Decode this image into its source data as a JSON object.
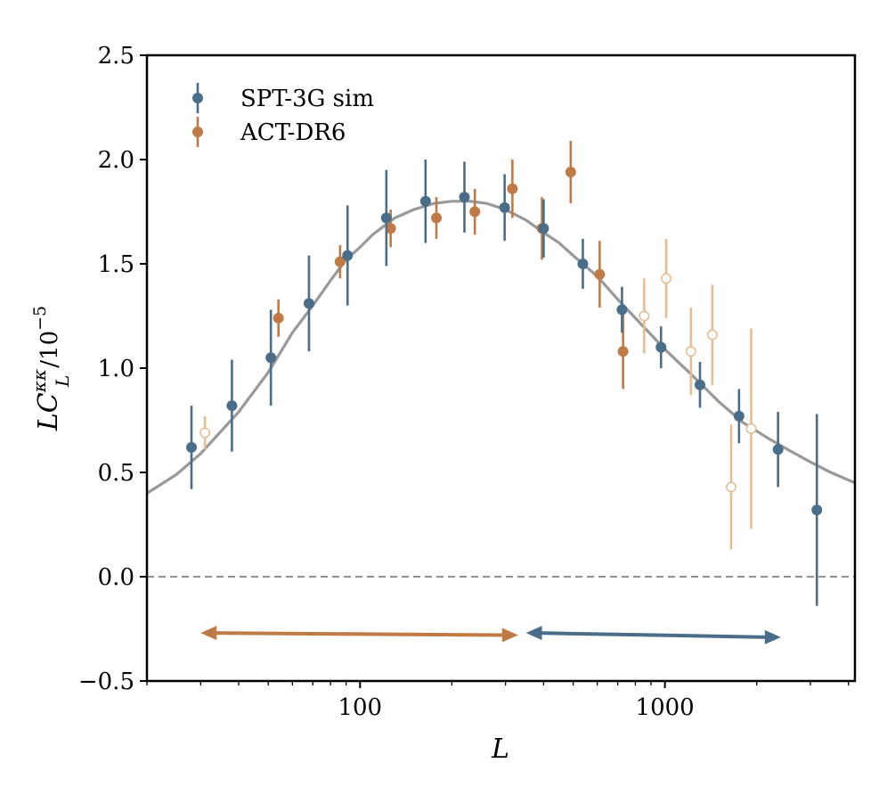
{
  "chart_data": {
    "type": "scatter",
    "xlabel": "L",
    "ylabel": {
      "main": "LC",
      "superscript": "κκ",
      "subscript": "L",
      "suffix": "/10",
      "exponent": "−5"
    },
    "x_scale": "log",
    "xlim": [
      20,
      4200
    ],
    "ylim": [
      -0.5,
      2.5
    ],
    "x_ticks": [
      100,
      1000
    ],
    "x_tick_labels": [
      "100",
      "1000"
    ],
    "y_ticks": [
      -0.5,
      0.0,
      0.5,
      1.0,
      1.5,
      2.0,
      2.5
    ],
    "y_tick_labels": [
      "−0.5",
      "0.0",
      "0.5",
      "1.0",
      "1.5",
      "2.0",
      "2.5"
    ],
    "grid": false,
    "legend_position": "top-left",
    "reference_line": {
      "y": 0,
      "style": "dashed",
      "color": "#808080"
    },
    "series": [
      {
        "name": "SPT-3G sim",
        "kind": "errorbar",
        "color": "#4a6e8a",
        "x": [
          28,
          38,
          51,
          68,
          91,
          122,
          164,
          220,
          298,
          400,
          538,
          723,
          971,
          1303,
          1750,
          2350,
          3150
        ],
        "y": [
          0.62,
          0.82,
          1.05,
          1.31,
          1.54,
          1.72,
          1.8,
          1.82,
          1.77,
          1.67,
          1.5,
          1.28,
          1.1,
          0.92,
          0.77,
          0.61,
          0.32
        ],
        "err": [
          0.2,
          0.22,
          0.23,
          0.23,
          0.24,
          0.23,
          0.2,
          0.17,
          0.16,
          0.14,
          0.12,
          0.11,
          0.1,
          0.11,
          0.13,
          0.18,
          0.46
        ]
      },
      {
        "name": "ACT-DR6",
        "kind": "errorbar",
        "color": "#c07a45",
        "x": [
          54,
          86,
          126,
          178,
          238,
          316,
          395,
          491,
          611,
          729
        ],
        "y": [
          1.24,
          1.51,
          1.67,
          1.72,
          1.75,
          1.86,
          1.67,
          1.94,
          1.45,
          1.08
        ],
        "err": [
          0.09,
          0.08,
          0.09,
          0.1,
          0.11,
          0.14,
          0.15,
          0.15,
          0.16,
          0.18
        ]
      },
      {
        "kind": "errorbar-open",
        "color": "#e6be96",
        "x": [
          31,
          855,
          1010,
          1217,
          1431,
          1649,
          1918
        ],
        "y": [
          0.69,
          1.25,
          1.43,
          1.08,
          1.16,
          0.43,
          0.71
        ],
        "err": [
          0.08,
          0.18,
          0.19,
          0.21,
          0.24,
          0.3,
          0.48
        ]
      }
    ],
    "model_curve": {
      "color": "#999999",
      "x": [
        20,
        25,
        30,
        40,
        50,
        60,
        70,
        80,
        90,
        100,
        110,
        130,
        150,
        175,
        200,
        230,
        260,
        300,
        350,
        400,
        450,
        500,
        600,
        700,
        800,
        1000,
        1200,
        1500,
        1800,
        2200,
        2600,
        3000,
        3500,
        4200
      ],
      "y": [
        0.4,
        0.49,
        0.59,
        0.79,
        0.98,
        1.17,
        1.3,
        1.42,
        1.52,
        1.58,
        1.64,
        1.72,
        1.76,
        1.79,
        1.8,
        1.8,
        1.79,
        1.76,
        1.71,
        1.65,
        1.6,
        1.54,
        1.44,
        1.33,
        1.24,
        1.09,
        0.98,
        0.84,
        0.74,
        0.66,
        0.6,
        0.55,
        0.5,
        0.45
      ]
    },
    "range_arrows": [
      {
        "color": "#c07a45",
        "x_start": 30,
        "x_end": 330,
        "y_start": -0.27,
        "y_end": -0.28
      },
      {
        "color": "#4a6e8a",
        "x_start": 350,
        "x_end": 2400,
        "y_start": -0.27,
        "y_end": -0.29
      }
    ]
  }
}
